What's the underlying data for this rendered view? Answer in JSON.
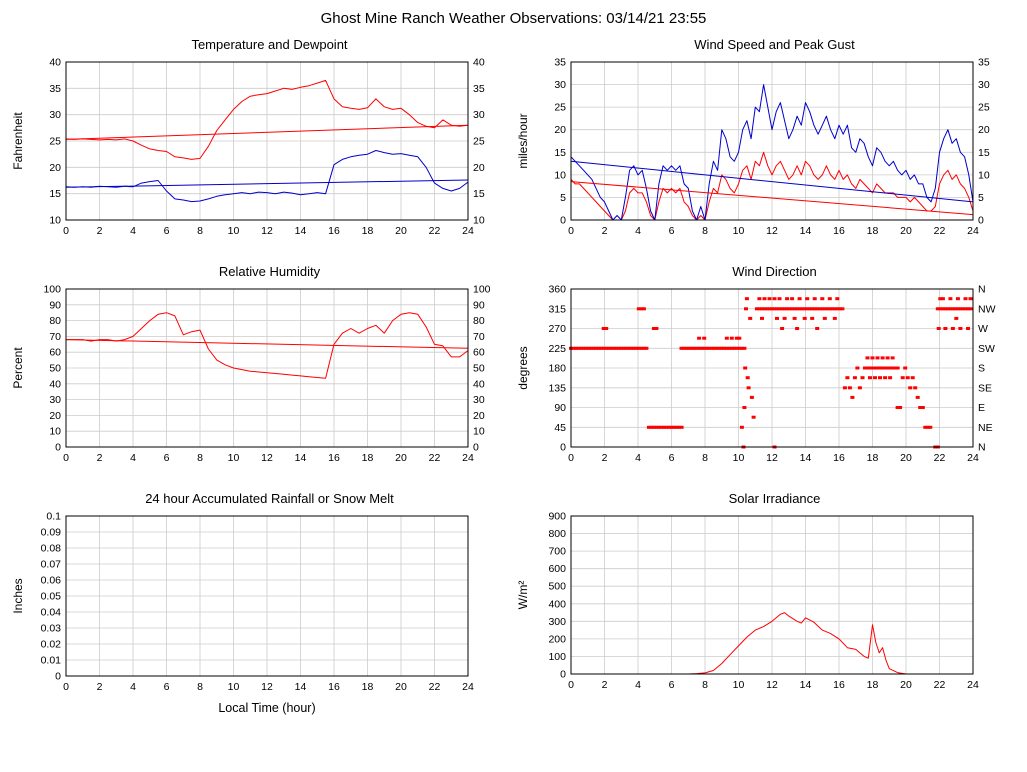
{
  "page_title": "Ghost Mine Ranch Weather Observations: 03/14/21 23:55",
  "chart_data": [
    {
      "id": "temperature",
      "type": "line",
      "title": "Temperature and Dewpoint",
      "ylabel": "Fahrenheit",
      "xlabel": "",
      "xlim": [
        0,
        24
      ],
      "xtick": 2,
      "ylim": [
        10,
        40
      ],
      "ytick": 5,
      "right": true,
      "grid": true,
      "legend_position": "none",
      "series": [
        {
          "name": "Temperature",
          "color": "#ff0000",
          "x0": 0,
          "dx": 0.5,
          "y": [
            25.4,
            25.3,
            25.4,
            25.3,
            25.2,
            25.3,
            25.2,
            25.4,
            25.0,
            24.2,
            23.5,
            23.2,
            23.0,
            22.0,
            21.8,
            21.5,
            21.7,
            24.0,
            27.0,
            29.0,
            31.0,
            32.5,
            33.5,
            33.8,
            34.0,
            34.5,
            35.0,
            34.8,
            35.2,
            35.5,
            36.0,
            36.5,
            33.0,
            31.5,
            31.2,
            31.0,
            31.3,
            33.0,
            31.5,
            31.0,
            31.2,
            30.0,
            28.5,
            27.8,
            27.5,
            29.0,
            28.0,
            27.8,
            28.0
          ]
        },
        {
          "name": "Dewpoint",
          "color": "#0000cc",
          "x0": 0,
          "dx": 0.5,
          "y": [
            16.3,
            16.2,
            16.3,
            16.2,
            16.4,
            16.3,
            16.2,
            16.4,
            16.3,
            17.0,
            17.3,
            17.5,
            15.5,
            14.0,
            13.8,
            13.5,
            13.6,
            14.0,
            14.5,
            14.8,
            15.0,
            15.2,
            15.0,
            15.3,
            15.2,
            15.0,
            15.3,
            15.1,
            14.8,
            15.0,
            15.2,
            15.0,
            20.5,
            21.5,
            22.0,
            22.3,
            22.5,
            23.2,
            22.8,
            22.5,
            22.6,
            22.3,
            22.0,
            20.0,
            17.0,
            16.0,
            15.5,
            16.0,
            17.2
          ]
        }
      ],
      "trends": [
        {
          "name": "Temperature trend",
          "color": "#ff0000",
          "y": [
            25.3,
            28.0
          ]
        },
        {
          "name": "Dewpoint trend",
          "color": "#0000cc",
          "y": [
            16.2,
            17.6
          ]
        }
      ]
    },
    {
      "id": "wind",
      "type": "line",
      "title": "Wind Speed and Peak Gust",
      "ylabel": "miles/hour",
      "xlabel": "",
      "xlim": [
        0,
        24
      ],
      "xtick": 2,
      "ylim": [
        0,
        35
      ],
      "ytick": 5,
      "right": true,
      "grid": true,
      "legend_position": "none",
      "series": [
        {
          "name": "Wind Speed",
          "color": "#ff0000",
          "x0": 0,
          "dx": 0.25,
          "y": [
            9,
            8,
            8,
            7,
            6,
            5,
            4,
            3,
            2,
            1,
            0,
            0,
            0,
            2,
            6,
            7,
            6,
            6,
            4,
            1,
            0,
            4,
            7,
            6,
            7,
            6,
            7,
            4,
            3,
            1,
            0,
            1,
            0,
            4,
            7,
            6,
            10,
            9,
            7,
            6,
            8,
            11,
            12,
            9,
            13,
            12,
            15,
            12,
            10,
            12,
            13,
            11,
            9,
            10,
            12,
            10,
            13,
            12,
            10,
            9,
            10,
            12,
            10,
            9,
            11,
            9,
            10,
            8,
            7,
            9,
            8,
            7,
            6,
            8,
            7,
            6,
            6,
            6,
            5,
            5,
            5,
            4,
            5,
            4,
            3,
            2,
            2,
            3,
            8,
            10,
            11,
            9,
            10,
            8,
            7,
            5,
            2
          ]
        },
        {
          "name": "Peak Gust",
          "color": "#0000cc",
          "x0": 0,
          "dx": 0.25,
          "y": [
            14,
            13,
            12,
            11,
            10,
            9,
            7,
            5,
            4,
            2,
            0,
            1,
            0,
            5,
            11,
            12,
            10,
            11,
            7,
            2,
            0,
            8,
            12,
            11,
            12,
            11,
            12,
            8,
            7,
            2,
            0,
            3,
            0,
            8,
            13,
            11,
            20,
            18,
            14,
            13,
            15,
            20,
            22,
            18,
            25,
            24,
            30,
            25,
            20,
            24,
            26,
            22,
            18,
            20,
            23,
            21,
            26,
            24,
            21,
            19,
            21,
            23,
            20,
            18,
            21,
            19,
            21,
            16,
            15,
            18,
            17,
            14,
            12,
            16,
            15,
            13,
            12,
            13,
            11,
            10,
            11,
            9,
            10,
            8,
            8,
            5,
            4,
            7,
            15,
            18,
            20,
            17,
            18,
            15,
            14,
            10,
            4
          ]
        }
      ],
      "trends": [
        {
          "name": "Wind speed trend",
          "color": "#ff0000",
          "y": [
            8.5,
            1.2
          ]
        },
        {
          "name": "Peak gust trend",
          "color": "#0000cc",
          "y": [
            13.0,
            4.0
          ]
        }
      ]
    },
    {
      "id": "humidity",
      "type": "line",
      "title": "Relative Humidity",
      "ylabel": "Percent",
      "xlabel": "",
      "xlim": [
        0,
        24
      ],
      "xtick": 2,
      "ylim": [
        0,
        100
      ],
      "ytick": 10,
      "right": true,
      "grid": true,
      "legend_position": "none",
      "series": [
        {
          "name": "Relative Humidity",
          "color": "#ff0000",
          "x0": 0,
          "dx": 0.5,
          "y": [
            68,
            68,
            68,
            67,
            68,
            68,
            67,
            68,
            70,
            75,
            80,
            84,
            85,
            83,
            71,
            73,
            74,
            62,
            55,
            52,
            50,
            49,
            48,
            47.5,
            47,
            46.5,
            46,
            45.5,
            45,
            44.5,
            44,
            43.5,
            65,
            72,
            75,
            72,
            75,
            77,
            72,
            80,
            84,
            85,
            84,
            76,
            65,
            64,
            57,
            57,
            61
          ]
        }
      ],
      "trends": [
        {
          "name": "Humidity trend",
          "color": "#ff0000",
          "y": [
            68,
            62.5
          ]
        }
      ]
    },
    {
      "id": "wind_direction",
      "type": "scatter",
      "title": "Wind Direction",
      "ylabel": "degrees",
      "xlabel": "",
      "xlim": [
        0,
        24
      ],
      "xtick": 2,
      "ylim": [
        0,
        360
      ],
      "ytick": 45,
      "right": false,
      "right_tick_labels": [
        "N",
        "NW",
        "W",
        "SW",
        "S",
        "SE",
        "E",
        "NE",
        "N"
      ],
      "grid": true,
      "legend_position": "none",
      "series": [
        {
          "name": "Wind Direction",
          "color": "#ff0000",
          "marker": "square",
          "bands": [
            [
              0,
              4.5,
              0.15,
              225
            ],
            [
              4.65,
              6.6,
              0.15,
              45
            ],
            [
              6.6,
              10.35,
              0.15,
              225
            ],
            [
              11.1,
              16.2,
              0.15,
              315
            ],
            [
              17.55,
              19.5,
              0.15,
              180
            ],
            [
              22.05,
              23.85,
              0.15,
              315
            ]
          ],
          "points": [
            [
              1.95,
              270
            ],
            [
              2.1,
              270
            ],
            [
              4.05,
              315
            ],
            [
              4.2,
              315
            ],
            [
              4.35,
              315
            ],
            [
              4.95,
              270
            ],
            [
              5.1,
              270
            ],
            [
              7.65,
              248
            ],
            [
              7.95,
              248
            ],
            [
              9.3,
              248
            ],
            [
              9.6,
              248
            ],
            [
              9.9,
              248
            ],
            [
              10.05,
              248
            ],
            [
              10.2,
              45
            ],
            [
              10.3,
              0
            ],
            [
              10.35,
              90
            ],
            [
              10.4,
              180
            ],
            [
              10.45,
              315
            ],
            [
              10.5,
              338
            ],
            [
              10.55,
              158
            ],
            [
              10.6,
              135
            ],
            [
              10.7,
              293
            ],
            [
              10.8,
              113
            ],
            [
              10.9,
              68
            ],
            [
              11.25,
              338
            ],
            [
              11.55,
              338
            ],
            [
              11.85,
              338
            ],
            [
              12.15,
              338
            ],
            [
              12.45,
              338
            ],
            [
              12.9,
              338
            ],
            [
              13.2,
              338
            ],
            [
              13.65,
              338
            ],
            [
              14.1,
              338
            ],
            [
              14.55,
              338
            ],
            [
              15,
              338
            ],
            [
              15.45,
              338
            ],
            [
              15.9,
              338
            ],
            [
              11.4,
              293
            ],
            [
              12.3,
              293
            ],
            [
              12.75,
              293
            ],
            [
              13.35,
              293
            ],
            [
              13.95,
              293
            ],
            [
              14.4,
              293
            ],
            [
              15.15,
              293
            ],
            [
              15.75,
              293
            ],
            [
              12.6,
              270
            ],
            [
              13.5,
              270
            ],
            [
              14.7,
              270
            ],
            [
              12.15,
              0
            ],
            [
              16.35,
              135
            ],
            [
              16.5,
              158
            ],
            [
              16.65,
              135
            ],
            [
              16.8,
              113
            ],
            [
              16.95,
              158
            ],
            [
              17.1,
              180
            ],
            [
              17.25,
              135
            ],
            [
              17.4,
              158
            ],
            [
              17.85,
              158
            ],
            [
              18.15,
              158
            ],
            [
              18.45,
              158
            ],
            [
              18.75,
              158
            ],
            [
              19.05,
              158
            ],
            [
              17.7,
              203
            ],
            [
              18,
              203
            ],
            [
              18.3,
              203
            ],
            [
              18.6,
              203
            ],
            [
              18.9,
              203
            ],
            [
              19.2,
              203
            ],
            [
              19.5,
              90
            ],
            [
              19.65,
              90
            ],
            [
              19.8,
              158
            ],
            [
              19.95,
              180
            ],
            [
              20.1,
              158
            ],
            [
              20.25,
              135
            ],
            [
              20.4,
              158
            ],
            [
              20.55,
              135
            ],
            [
              20.7,
              113
            ],
            [
              20.85,
              90
            ],
            [
              21,
              90
            ],
            [
              21.15,
              45
            ],
            [
              21.3,
              45
            ],
            [
              21.45,
              45
            ],
            [
              21.75,
              0
            ],
            [
              21.9,
              0
            ],
            [
              21.9,
              315
            ],
            [
              21.95,
              270
            ],
            [
              22.05,
              338
            ],
            [
              22.2,
              338
            ],
            [
              22.65,
              338
            ],
            [
              23.1,
              338
            ],
            [
              23.55,
              338
            ],
            [
              23.85,
              338
            ],
            [
              22.35,
              270
            ],
            [
              22.8,
              270
            ],
            [
              23.25,
              270
            ],
            [
              23.7,
              270
            ],
            [
              23,
              293
            ]
          ]
        }
      ]
    },
    {
      "id": "rainfall",
      "type": "line",
      "title": "24 hour Accumulated Rainfall or Snow Melt",
      "ylabel": "Inches",
      "xlabel": "Local Time (hour)",
      "xlim": [
        0,
        24
      ],
      "xtick": 2,
      "ylim": [
        0,
        0.1
      ],
      "ytick": 0.01,
      "right": false,
      "grid": true,
      "legend_position": "none",
      "series": [
        {
          "name": "Accumulated Rainfall",
          "color": "#ff0000",
          "x": [
            0,
            24
          ],
          "y": [
            0,
            0
          ]
        }
      ]
    },
    {
      "id": "solar",
      "type": "line",
      "title": "Solar Irradiance",
      "ylabel": "W/m²",
      "xlabel": "",
      "xlim": [
        0,
        24
      ],
      "xtick": 2,
      "ylim": [
        0,
        900
      ],
      "ytick": 100,
      "right": false,
      "grid": true,
      "legend_position": "none",
      "series": [
        {
          "name": "Solar Irradiance",
          "color": "#ff0000",
          "x": [
            0,
            6,
            7,
            7.5,
            8,
            8.5,
            9,
            9.5,
            10,
            10.5,
            11,
            11.5,
            12,
            12.5,
            12.75,
            13,
            13.5,
            13.75,
            14,
            14.5,
            15,
            15.5,
            16,
            16.5,
            17,
            17.25,
            17.5,
            17.75,
            18,
            18.2,
            18.4,
            18.6,
            18.8,
            19,
            19.5,
            20,
            24
          ],
          "y": [
            0,
            0,
            0,
            2,
            6,
            20,
            60,
            110,
            160,
            210,
            250,
            270,
            300,
            340,
            350,
            330,
            300,
            290,
            320,
            295,
            250,
            230,
            200,
            150,
            140,
            120,
            100,
            90,
            280,
            180,
            120,
            150,
            80,
            30,
            8,
            0,
            0
          ]
        }
      ]
    }
  ]
}
